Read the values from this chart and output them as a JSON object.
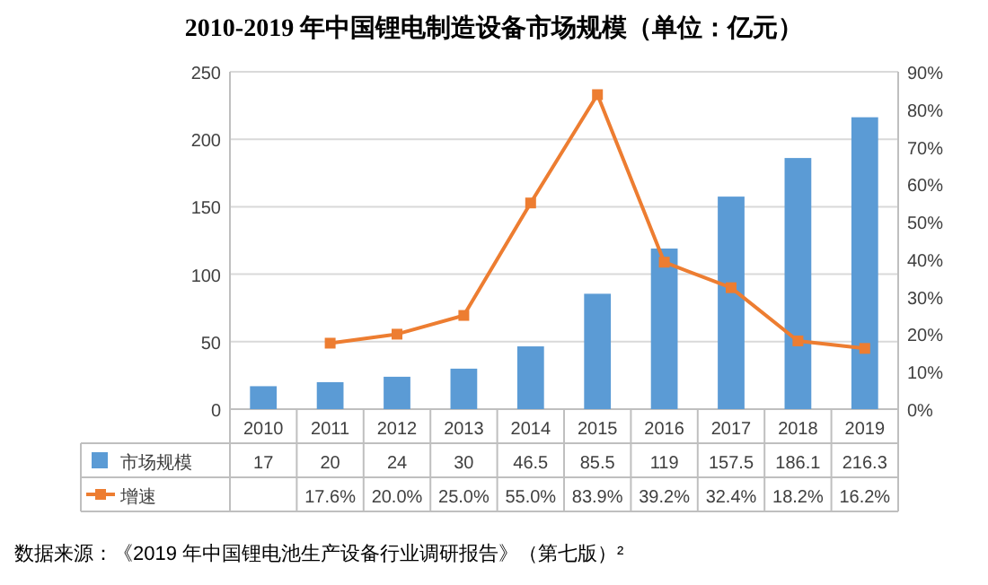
{
  "chart_data": {
    "type": "bar",
    "title": "2010-2019 年中国锂电制造设备市场规模（单位：亿元）",
    "categories": [
      "2010",
      "2011",
      "2012",
      "2013",
      "2014",
      "2015",
      "2016",
      "2017",
      "2018",
      "2019"
    ],
    "series": [
      {
        "name": "市场规模",
        "color": "#5b9bd5",
        "values": [
          17,
          20,
          24,
          30,
          46.5,
          85.5,
          119,
          157.5,
          186.1,
          216.3
        ]
      },
      {
        "name": "增速",
        "type": "line",
        "axis": "y2",
        "color": "#ed7d31",
        "marker": "square",
        "values": [
          null,
          17.6,
          20.0,
          25.0,
          55.0,
          83.9,
          39.2,
          32.4,
          18.2,
          16.2
        ],
        "value_labels": [
          null,
          "17.6%",
          "20.0%",
          "25.0%",
          "55.0%",
          "83.9%",
          "39.2%",
          "32.4%",
          "18.2%",
          "16.2%"
        ]
      }
    ],
    "ylim": [
      0,
      250
    ],
    "yticks": [
      0,
      50,
      100,
      150,
      200,
      250
    ],
    "y2lim": [
      0,
      90
    ],
    "y2ticks": [
      {
        "value": 0,
        "label": "0%"
      },
      {
        "value": 10,
        "label": "10%"
      },
      {
        "value": 20,
        "label": "20%"
      },
      {
        "value": 30,
        "label": "30%"
      },
      {
        "value": 40,
        "label": "40%"
      },
      {
        "value": 50,
        "label": "50%"
      },
      {
        "value": 60,
        "label": "60%"
      },
      {
        "value": 70,
        "label": "70%"
      },
      {
        "value": 80,
        "label": "80%"
      },
      {
        "value": 90,
        "label": "90%"
      }
    ],
    "grid": "y",
    "legend": "bottom",
    "data_labels": true,
    "annotations": [
      "数据来源：《2019 年中国锂电池生产设备行业调研报告》（第七版）²"
    ]
  }
}
